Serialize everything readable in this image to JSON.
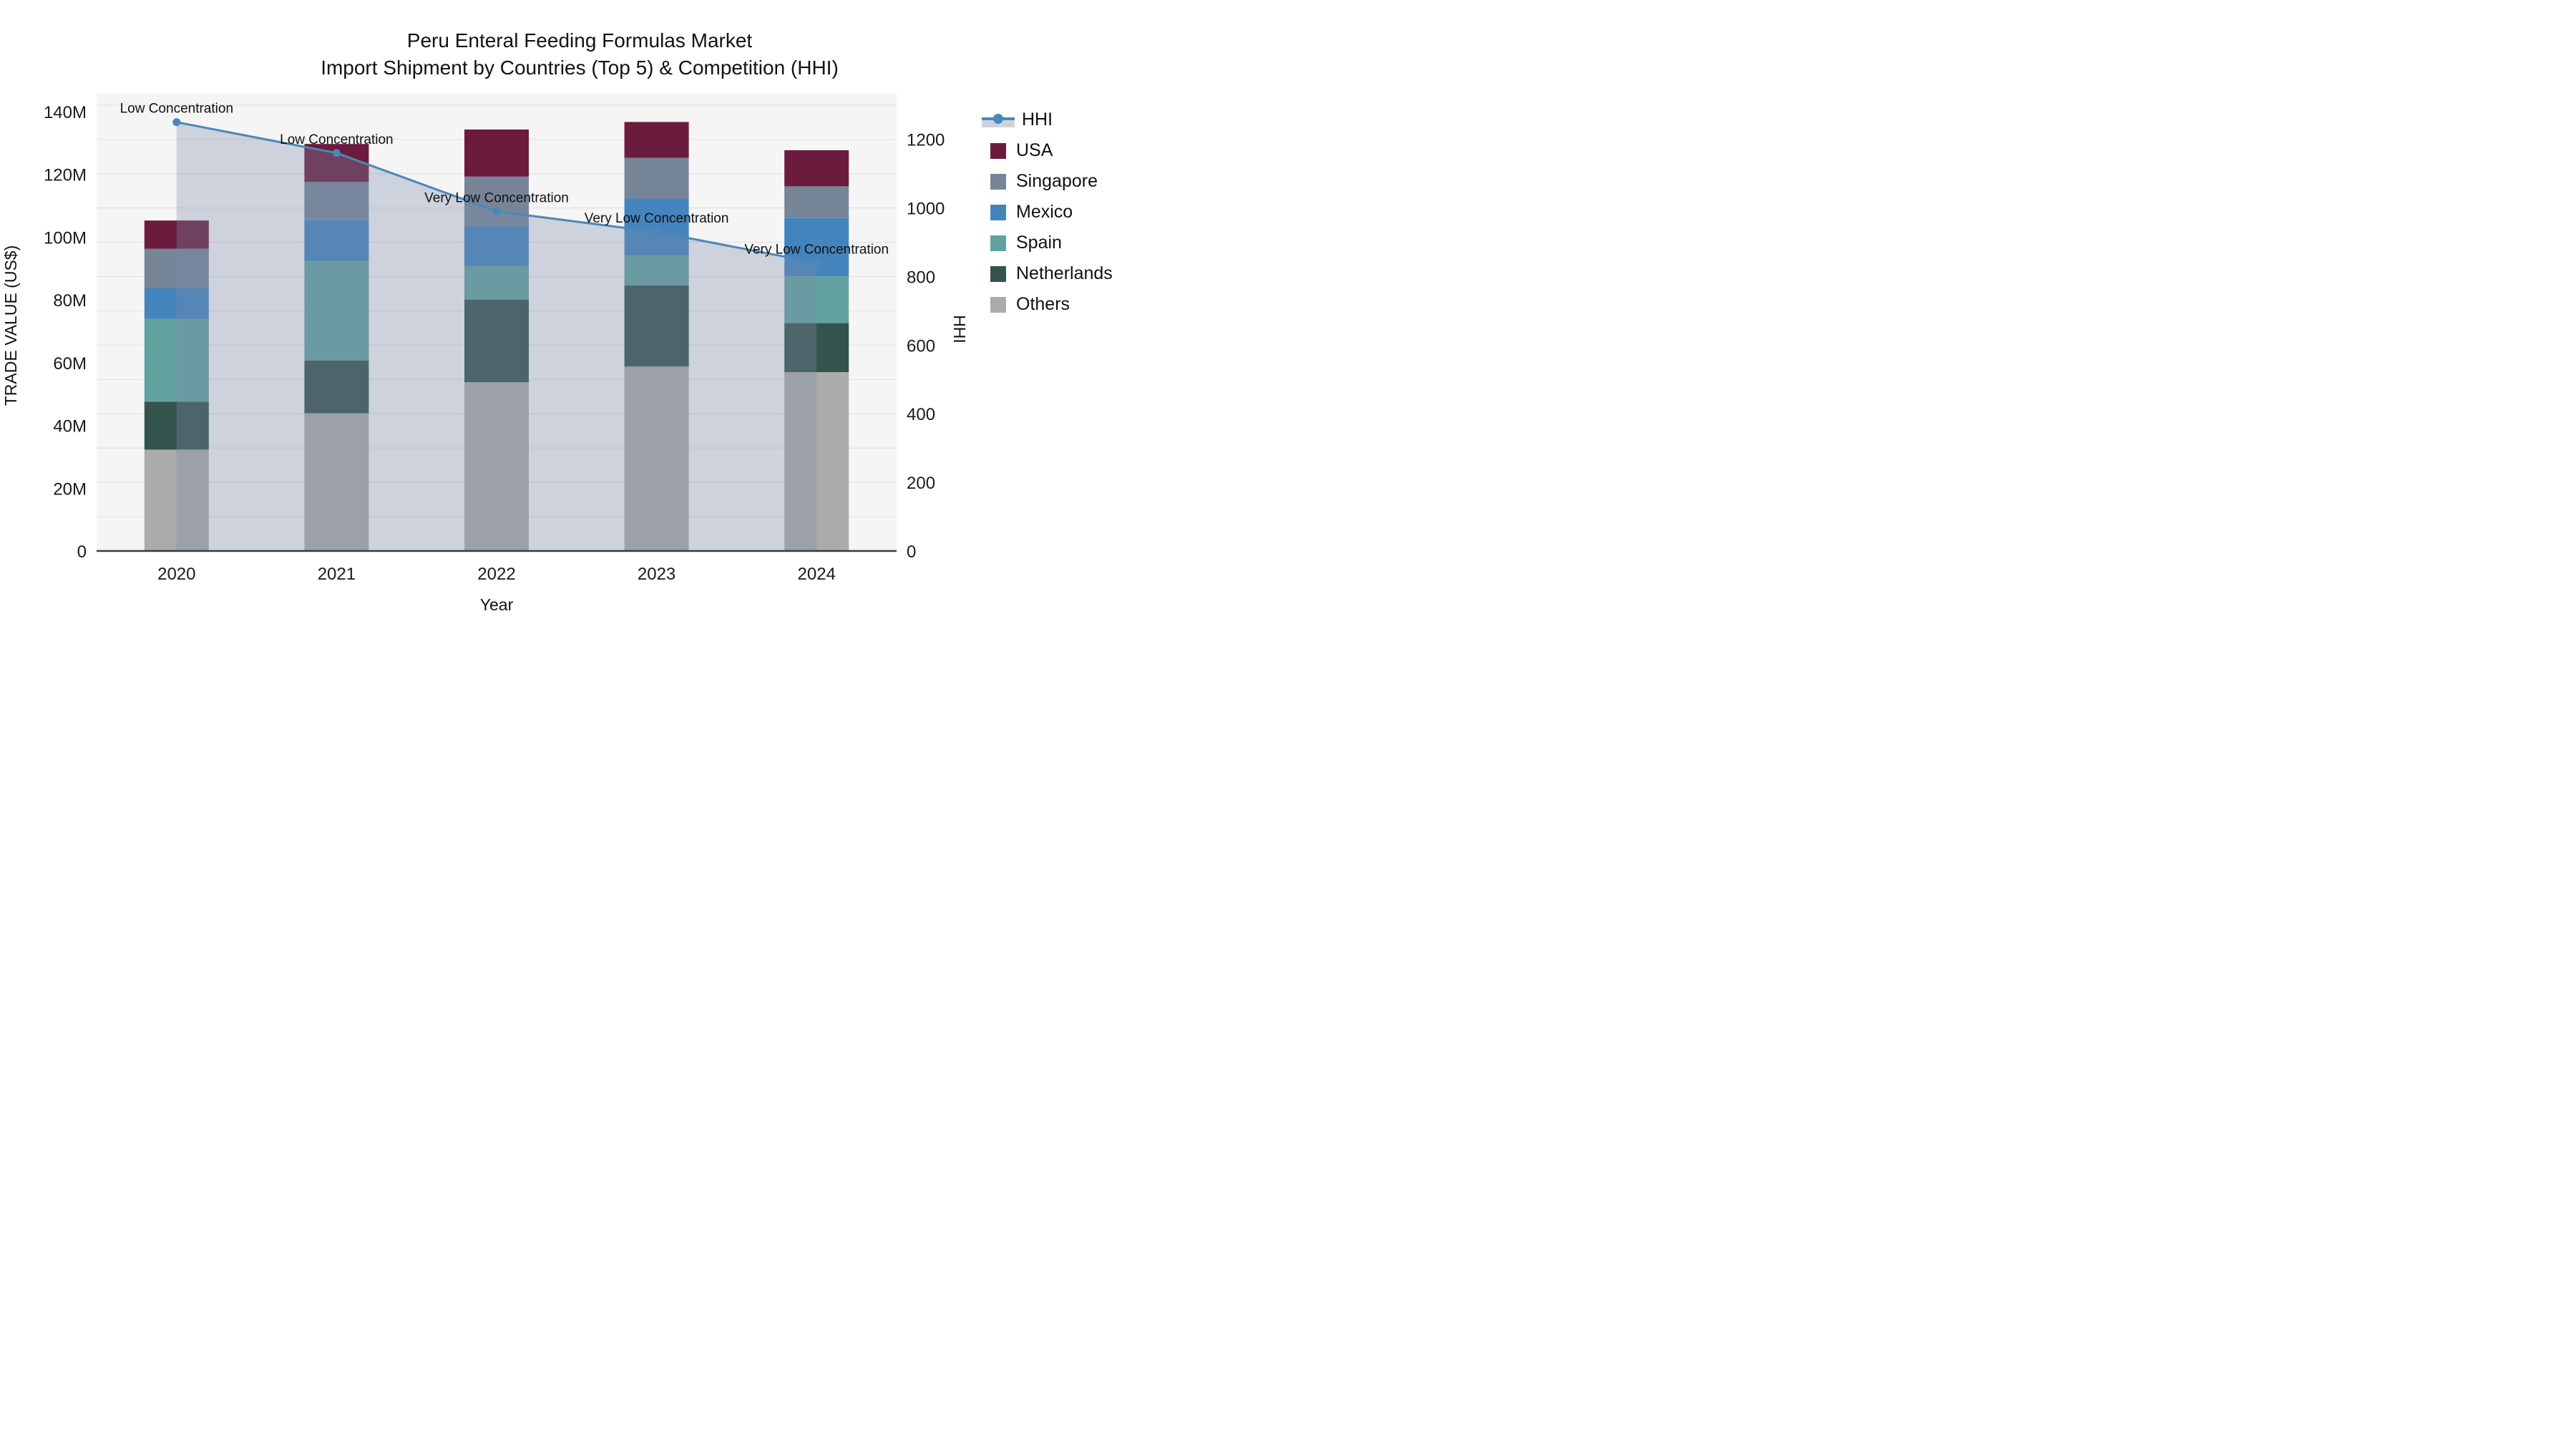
{
  "title": {
    "line1": "Peru Enteral Feeding Formulas Market",
    "line2": "Import Shipment by Countries (Top 5) & Competition (HHI)"
  },
  "axes": {
    "left": {
      "title": "TRADE VALUE (US$)",
      "ticks": [
        "0",
        "20M",
        "40M",
        "60M",
        "80M",
        "100M",
        "120M",
        "140M"
      ],
      "tick_values": [
        0,
        20,
        40,
        60,
        80,
        100,
        120,
        140
      ],
      "max": 145.7,
      "unit": "US$ millions"
    },
    "right": {
      "title": "HHI",
      "ticks": [
        "0",
        "200",
        "400",
        "600",
        "800",
        "1000",
        "1200"
      ],
      "tick_values": [
        0,
        200,
        400,
        600,
        800,
        1000,
        1200
      ],
      "max": 1333
    },
    "x": {
      "title": "Year",
      "categories": [
        "2020",
        "2021",
        "2022",
        "2023",
        "2024"
      ]
    }
  },
  "chart_data": {
    "type": "bar+line",
    "title": "Peru Enteral Feeding Formulas Market — Import Shipment by Countries (Top 5) & Competition (HHI)",
    "categories": [
      "2020",
      "2021",
      "2022",
      "2023",
      "2024"
    ],
    "stack_order_bottom_to_top": [
      "Others",
      "Netherlands",
      "Spain",
      "Mexico",
      "Singapore",
      "USA"
    ],
    "series": [
      {
        "name": "Others",
        "color": "#ababab",
        "values": [
          32.3,
          43.9,
          53.8,
          58.8,
          57.0
        ]
      },
      {
        "name": "Netherlands",
        "color": "#33534c",
        "values": [
          15.3,
          16.8,
          26.3,
          25.8,
          15.6
        ]
      },
      {
        "name": "Spain",
        "color": "#62a29e",
        "values": [
          26.4,
          31.6,
          10.7,
          9.6,
          14.9
        ]
      },
      {
        "name": "Mexico",
        "color": "#4484bd",
        "values": [
          9.8,
          13.2,
          12.7,
          18.1,
          18.6
        ]
      },
      {
        "name": "Singapore",
        "color": "#778599",
        "values": [
          12.5,
          12.1,
          15.8,
          13.0,
          10.1
        ]
      },
      {
        "name": "USA",
        "color": "#6b1b3c",
        "values": [
          9.0,
          12.1,
          15.0,
          11.4,
          11.5
        ]
      }
    ],
    "bar_totals": [
      105.3,
      129.7,
      134.3,
      136.7,
      127.7
    ],
    "line": {
      "name": "HHI",
      "axis": "right",
      "values": [
        1250,
        1160,
        990,
        930,
        840
      ],
      "color": "#4d86b8",
      "area_fill": "rgba(125,140,170,0.33)"
    },
    "annotations": [
      {
        "category": "2020",
        "text": "Low Concentration"
      },
      {
        "category": "2021",
        "text": "Low Concentration"
      },
      {
        "category": "2022",
        "text": "Very Low Concentration"
      },
      {
        "category": "2023",
        "text": "Very Low Concentration"
      },
      {
        "category": "2024",
        "text": "Very Low Concentration"
      }
    ],
    "grid": {
      "on": true,
      "spacing_hhi": 100,
      "color": "#e3e3e3"
    },
    "plot_background": "#f5f5f5",
    "axis_line_color": "#3a3a3a",
    "legend_position": "right"
  },
  "legend": {
    "items": [
      {
        "label": "HHI",
        "type": "line",
        "color": "#4d86b8",
        "band": "#ccd3dd"
      },
      {
        "label": "USA",
        "type": "box",
        "color": "#6b1b3c"
      },
      {
        "label": "Singapore",
        "type": "box",
        "color": "#778599"
      },
      {
        "label": "Mexico",
        "type": "box",
        "color": "#4484bd"
      },
      {
        "label": "Spain",
        "type": "box",
        "color": "#62a29e"
      },
      {
        "label": "Netherlands",
        "type": "box",
        "color": "#33534c"
      },
      {
        "label": "Others",
        "type": "box",
        "color": "#ababab"
      }
    ]
  }
}
